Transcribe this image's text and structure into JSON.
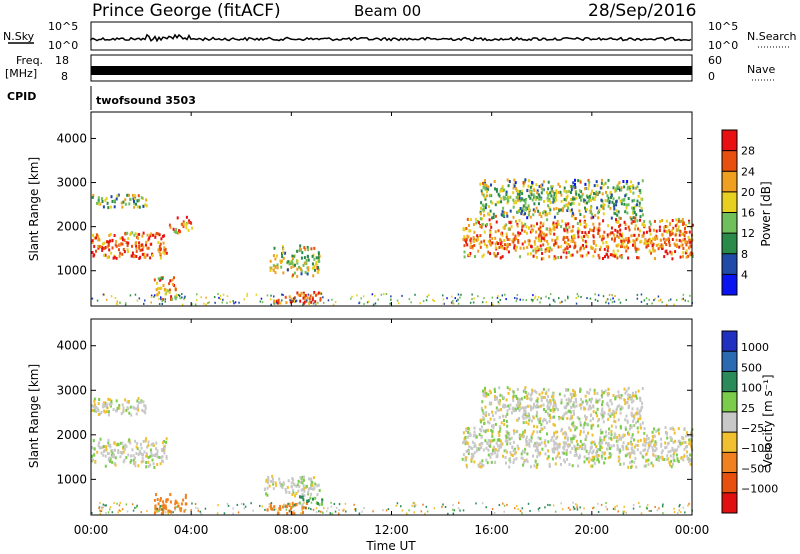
{
  "header": {
    "station": "Prince George (fitACF)",
    "beam": "Beam 00",
    "date": "28/Sep/2016"
  },
  "side_labels": {
    "nsky": "N.Sky",
    "freq_top": "Freq.",
    "freq_unit": "[MHz]",
    "cpid": "CPID",
    "nsearch": "N.Search",
    "nave": "Nave"
  },
  "cpid_text": "twofsound 3503",
  "noise_panel": {
    "left_ticks": [
      "10^5",
      "10^0"
    ],
    "right_ticks": [
      "10^5",
      "10^0"
    ]
  },
  "freq_panel": {
    "left_ticks": [
      "18",
      "8"
    ],
    "right_ticks": [
      "60",
      "0"
    ]
  },
  "x_axis": {
    "ticks": [
      "00:00",
      "04:00",
      "08:00",
      "12:00",
      "16:00",
      "20:00",
      "00:00"
    ],
    "label": "Time UT"
  },
  "power_panel": {
    "ylabel": "Slant Range [km]",
    "yticks": [
      "1000",
      "2000",
      "3000",
      "4000"
    ],
    "cbar_label": "Power [dB]",
    "cbar_ticks": [
      "4",
      "8",
      "12",
      "16",
      "20",
      "24",
      "28"
    ],
    "cbar_colors": [
      "#0a14f0",
      "#1f4aa8",
      "#2a8a4a",
      "#6fbf5a",
      "#e8d020",
      "#f0a020",
      "#e85010",
      "#e81010"
    ]
  },
  "velocity_panel": {
    "ylabel": "Slant Range [km]",
    "yticks": [
      "1000",
      "2000",
      "3000",
      "4000"
    ],
    "cbar_label": "Velocity [m s⁻¹]",
    "cbar_ticks": [
      "1000",
      "500",
      "100",
      "25",
      "−25",
      "−100",
      "−500",
      "−1000"
    ],
    "cbar_colors": [
      "#2030c0",
      "#2a6ab0",
      "#2a8a5a",
      "#7acc4a",
      "#c8c8c8",
      "#f0c030",
      "#f08020",
      "#e85010",
      "#e01010"
    ]
  },
  "chart_data": [
    {
      "type": "heatmap",
      "title": "Power",
      "x_unit": "hours UT",
      "xlim": [
        0,
        24
      ],
      "ylim": [
        200,
        4600
      ],
      "colorbar": {
        "label": "Power [dB]",
        "range": [
          0,
          32
        ]
      },
      "features": [
        {
          "t": [
            0.0,
            3.0
          ],
          "range": [
            1300,
            1900
          ],
          "power": 26
        },
        {
          "t": [
            0.0,
            2.2
          ],
          "range": [
            2450,
            2750
          ],
          "power": 14
        },
        {
          "t": [
            3.1,
            4.0
          ],
          "range": [
            1850,
            2250
          ],
          "power": 22
        },
        {
          "t": [
            2.5,
            3.4
          ],
          "range": [
            350,
            900
          ],
          "power": 22
        },
        {
          "t": [
            7.1,
            9.1
          ],
          "range": [
            900,
            1600
          ],
          "power": 16
        },
        {
          "t": [
            7.2,
            9.2
          ],
          "range": [
            280,
            550
          ],
          "power": 27
        },
        {
          "t": [
            14.8,
            24.0
          ],
          "range": [
            1300,
            2200
          ],
          "power": 24
        },
        {
          "t": [
            15.5,
            22.0
          ],
          "range": [
            2200,
            3100
          ],
          "power": 14
        }
      ]
    },
    {
      "type": "heatmap",
      "title": "Velocity",
      "x_unit": "hours UT",
      "xlim": [
        0,
        24
      ],
      "ylim": [
        200,
        4600
      ],
      "colorbar": {
        "label": "Velocity [m s⁻¹]",
        "range": [
          -1000,
          1000
        ]
      },
      "features": [
        {
          "t": [
            0.0,
            3.0
          ],
          "range": [
            1300,
            1950
          ],
          "velocity": 0
        },
        {
          "t": [
            0.0,
            2.2
          ],
          "range": [
            2450,
            2850
          ],
          "velocity": 0
        },
        {
          "t": [
            2.5,
            3.8
          ],
          "range": [
            250,
            700
          ],
          "velocity": -300
        },
        {
          "t": [
            6.9,
            9.1
          ],
          "range": [
            650,
            1100
          ],
          "velocity": 0
        },
        {
          "t": [
            7.0,
            8.6
          ],
          "range": [
            250,
            500
          ],
          "velocity": -300
        },
        {
          "t": [
            8.3,
            9.2
          ],
          "range": [
            450,
            650
          ],
          "velocity": 70
        },
        {
          "t": [
            14.8,
            24.0
          ],
          "range": [
            1300,
            2200
          ],
          "velocity": 0
        },
        {
          "t": [
            15.5,
            22.0
          ],
          "range": [
            2200,
            3100
          ],
          "velocity": 0
        }
      ]
    }
  ]
}
